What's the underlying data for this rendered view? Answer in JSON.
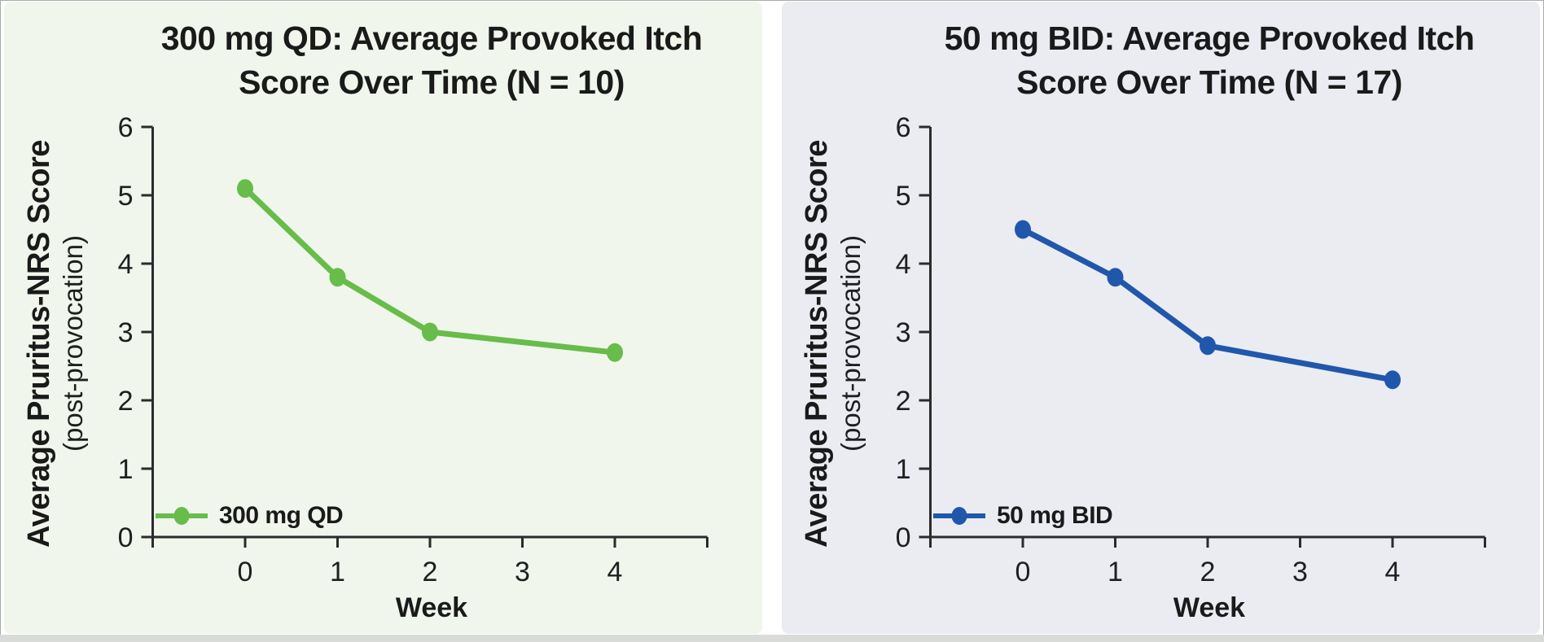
{
  "page": {
    "background": "#ffffff",
    "bottom_strip_color": "#d9dbd9",
    "axis_color": "#2b2b2b",
    "text_color": "#1a1a1a"
  },
  "chart_data": [
    {
      "type": "line",
      "title_line1": "300 mg QD: Average Provoked Itch",
      "title_line2": "Score Over Time (N = 10)",
      "ylabel": "Average Pruritus-NRS Score",
      "ylabel_sub": "(post-provocation)",
      "xlabel": "Week",
      "legend_label": "300 mg QD",
      "legend_position": "lower left",
      "color": "#68bc4a",
      "panel_background": "#f0f6ec",
      "x": [
        0,
        1,
        2,
        4
      ],
      "values": [
        5.1,
        3.8,
        3.0,
        2.7
      ],
      "xticks": [
        0,
        1,
        2,
        3,
        4
      ],
      "yticks": [
        0,
        1,
        2,
        3,
        4,
        5,
        6
      ],
      "xlim": [
        -1,
        5
      ],
      "ylim": [
        0,
        6
      ],
      "grid": false
    },
    {
      "type": "line",
      "title_line1": "50 mg BID: Average Provoked Itch",
      "title_line2": "Score Over Time (N = 17)",
      "ylabel": "Average Pruritus-NRS Score",
      "ylabel_sub": "(post-provocation)",
      "xlabel": "Week",
      "legend_label": "50 mg BID",
      "legend_position": "lower left",
      "color": "#2057ab",
      "panel_background": "#eaecf2",
      "x": [
        0,
        1,
        2,
        4
      ],
      "values": [
        4.5,
        3.8,
        2.8,
        2.3
      ],
      "xticks": [
        0,
        1,
        2,
        3,
        4
      ],
      "yticks": [
        0,
        1,
        2,
        3,
        4,
        5,
        6
      ],
      "xlim": [
        -1,
        5
      ],
      "ylim": [
        0,
        6
      ],
      "grid": false
    }
  ]
}
